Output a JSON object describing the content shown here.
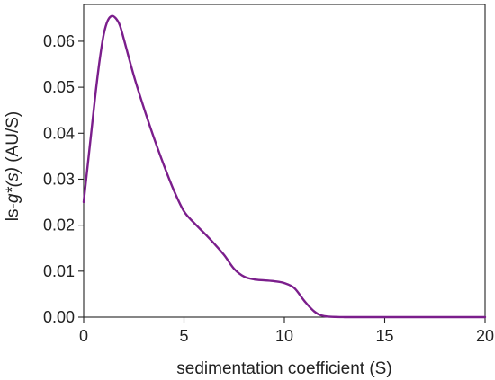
{
  "chart_data": {
    "type": "line",
    "title": "",
    "xlabel": "sedimentation coefficient (S)",
    "ylabel": {
      "prefix": "ls-",
      "italic": "g*(s)",
      "suffix": " (AU/S)"
    },
    "xlim": [
      0,
      20
    ],
    "ylim": [
      0,
      0.068
    ],
    "xticks": [
      "0",
      "5",
      "10",
      "15",
      "20"
    ],
    "yticks": [
      "0.00",
      "0.01",
      "0.02",
      "0.03",
      "0.04",
      "0.05",
      "0.06"
    ],
    "grid": false,
    "legend": "none",
    "series": [
      {
        "color": "#7B1E8C",
        "x": [
          0,
          0.2,
          0.4,
          0.6,
          0.8,
          1.0,
          1.2,
          1.4,
          1.6,
          1.8,
          2.0,
          2.5,
          3.0,
          3.5,
          4.0,
          4.5,
          5.0,
          5.5,
          6.0,
          6.5,
          7.0,
          7.5,
          8.0,
          8.5,
          9.0,
          9.5,
          10.0,
          10.5,
          11.0,
          11.5,
          12.0,
          13,
          14,
          15,
          16,
          17,
          18,
          19,
          20
        ],
        "y": [
          0.025,
          0.033,
          0.041,
          0.049,
          0.056,
          0.0615,
          0.0645,
          0.0655,
          0.065,
          0.0635,
          0.0605,
          0.0525,
          0.0455,
          0.039,
          0.033,
          0.0275,
          0.023,
          0.0205,
          0.0183,
          0.016,
          0.0135,
          0.0105,
          0.0088,
          0.0082,
          0.008,
          0.0078,
          0.0074,
          0.0063,
          0.0035,
          0.0012,
          0.0002,
          0,
          0,
          0,
          0,
          0,
          0,
          0,
          0
        ]
      }
    ]
  }
}
